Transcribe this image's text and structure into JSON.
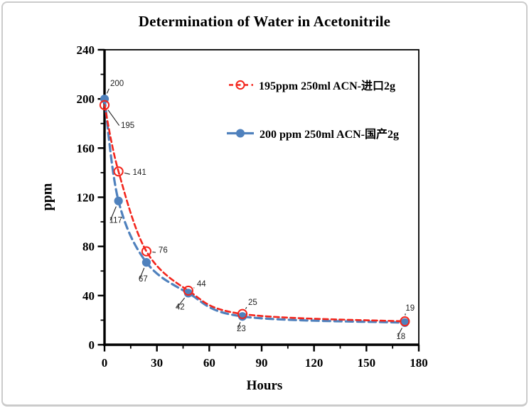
{
  "window": {
    "background": "#ffffff",
    "border_color": "#cbcbcb"
  },
  "chart_data": {
    "type": "line",
    "title": "Determination of Water in Acetonitrile",
    "xlabel": "Hours",
    "ylabel": "ppm",
    "xlim": [
      0,
      180
    ],
    "ylim": [
      0,
      240
    ],
    "x_major_ticks": [
      0,
      30,
      60,
      90,
      120,
      150,
      180
    ],
    "x_minor_tick_step": 15,
    "y_major_ticks": [
      0,
      40,
      80,
      120,
      160,
      200,
      240
    ],
    "y_minor_tick_step": 20,
    "grid": false,
    "legend_position": "upper-right-inside",
    "axis_color": "#000000",
    "label_color": "#1f1f1f",
    "series": [
      {
        "name": "195ppm  250ml ACN-进口2g",
        "color": "#f3251c",
        "line_style": "dashed",
        "marker": "open-circle",
        "x": [
          0,
          8,
          24,
          48,
          79,
          172
        ],
        "values": [
          195,
          141,
          76,
          44,
          25,
          19
        ],
        "point_labels": [
          "195",
          "141",
          "76",
          "44",
          "25",
          "19"
        ]
      },
      {
        "name": "200 ppm 250ml ACN-国产2g",
        "color": "#4f81bd",
        "line_style": "dashed",
        "marker": "filled-circle",
        "x": [
          0,
          8,
          24,
          48,
          79,
          172
        ],
        "values": [
          200,
          117,
          67,
          42,
          23,
          18
        ],
        "point_labels": [
          "200",
          "117",
          "67",
          "42",
          "23",
          "18"
        ]
      }
    ]
  }
}
